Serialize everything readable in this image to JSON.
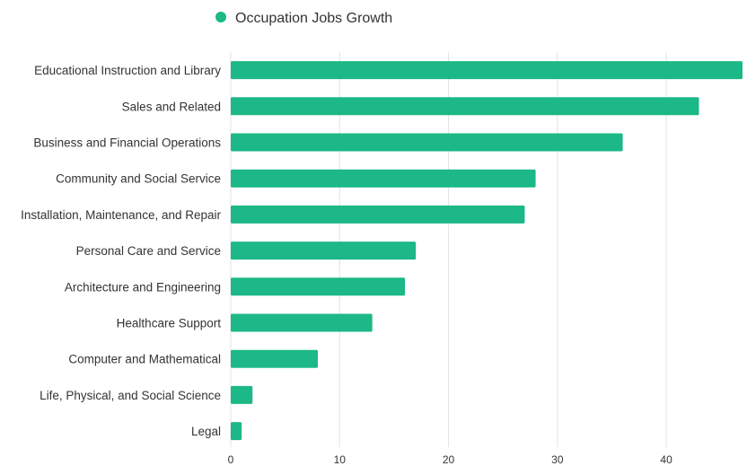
{
  "chart_data": {
    "type": "bar",
    "orientation": "horizontal",
    "categories": [
      "Educational Instruction and Library",
      "Sales and Related",
      "Business and Financial Operations",
      "Community and Social Service",
      "Installation, Maintenance, and Repair",
      "Personal Care and Service",
      "Architecture and Engineering",
      "Healthcare Support",
      "Computer and Mathematical",
      "Life, Physical, and Social Science",
      "Legal"
    ],
    "series": [
      {
        "name": "Occupation Jobs Growth",
        "color": "#1cb887",
        "values": [
          47,
          43,
          36,
          28,
          27,
          17,
          16,
          13,
          8,
          2,
          1
        ]
      }
    ],
    "xlim": [
      0,
      47
    ],
    "xticks": [
      0,
      10,
      20,
      30,
      40
    ],
    "grid": true,
    "legend_position": "top-center"
  }
}
